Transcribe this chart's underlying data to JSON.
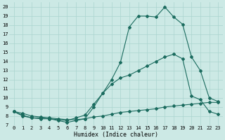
{
  "title": "",
  "xlabel": "Humidex (Indice chaleur)",
  "background_color": "#cce9e5",
  "line_color": "#1a6b5e",
  "grid_color": "#aad4cf",
  "xlim": [
    -0.5,
    23.5
  ],
  "ylim": [
    7,
    20.5
  ],
  "xticks": [
    0,
    1,
    2,
    3,
    4,
    5,
    6,
    7,
    8,
    9,
    10,
    11,
    12,
    13,
    14,
    15,
    16,
    17,
    18,
    19,
    20,
    21,
    22,
    23
  ],
  "yticks": [
    7,
    8,
    9,
    10,
    11,
    12,
    13,
    14,
    15,
    16,
    17,
    18,
    19,
    20
  ],
  "s1_x": [
    0,
    1,
    2,
    3,
    4,
    5,
    6,
    7,
    8,
    9,
    10,
    11,
    12,
    13,
    14,
    15,
    16,
    17,
    18,
    19,
    20,
    21,
    22,
    23
  ],
  "s1_y": [
    8.5,
    8.0,
    7.8,
    7.7,
    7.7,
    7.5,
    7.3,
    7.5,
    7.7,
    9.0,
    10.5,
    12.0,
    13.9,
    17.8,
    19.0,
    19.0,
    18.9,
    20.0,
    18.9,
    18.1,
    14.5,
    13.0,
    10.0,
    9.6
  ],
  "s2_x": [
    0,
    1,
    2,
    3,
    4,
    5,
    6,
    7,
    8,
    9,
    10,
    11,
    12,
    13,
    14,
    15,
    16,
    17,
    18,
    19,
    20,
    21,
    22,
    23
  ],
  "s2_y": [
    8.5,
    8.1,
    7.8,
    7.8,
    7.7,
    7.6,
    7.5,
    7.8,
    8.1,
    9.3,
    10.5,
    11.5,
    12.2,
    12.5,
    13.0,
    13.5,
    14.0,
    14.5,
    14.8,
    14.3,
    10.2,
    9.8,
    8.5,
    8.2
  ],
  "s3_x": [
    0,
    1,
    2,
    3,
    4,
    5,
    6,
    7,
    8,
    9,
    10,
    11,
    12,
    13,
    14,
    15,
    16,
    17,
    18,
    19,
    20,
    21,
    22,
    23
  ],
  "s3_y": [
    8.5,
    8.3,
    8.0,
    7.9,
    7.8,
    7.7,
    7.6,
    7.6,
    7.7,
    7.9,
    8.0,
    8.2,
    8.4,
    8.5,
    8.6,
    8.7,
    8.8,
    9.0,
    9.1,
    9.2,
    9.3,
    9.4,
    9.5,
    9.5
  ],
  "xlabel_fontsize": 6,
  "tick_fontsize": 5,
  "linewidth": 0.8,
  "markersize": 2.0
}
